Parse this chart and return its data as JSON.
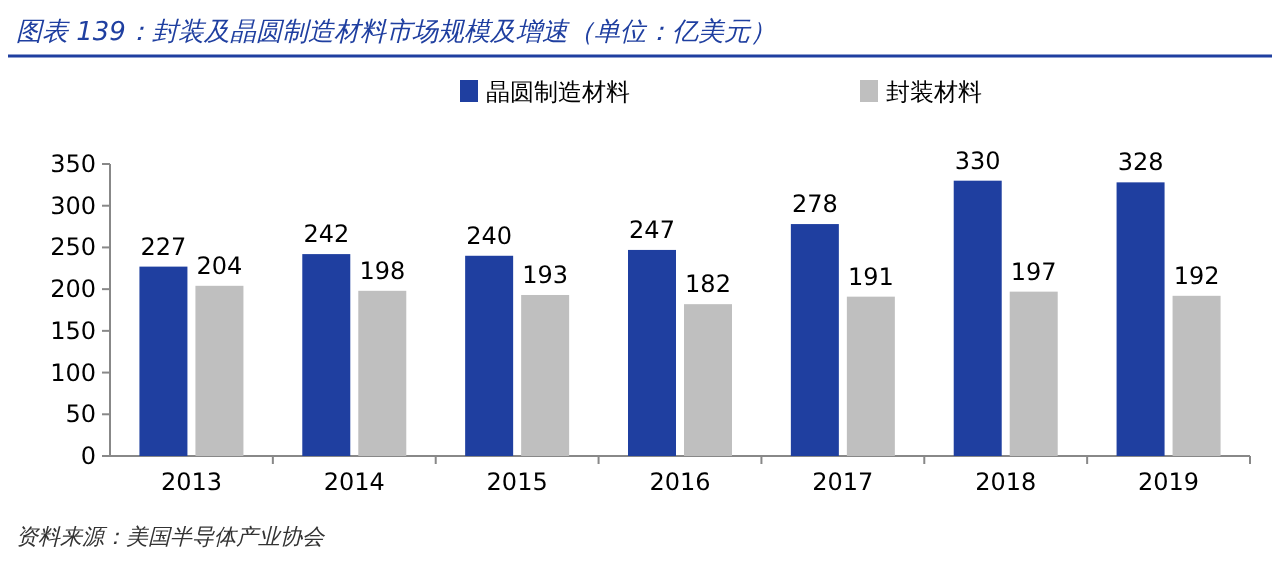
{
  "chart_data": {
    "type": "bar",
    "title": "图表 139：封装及晶圆制造材料市场规模及增速（单位：亿美元）",
    "categories": [
      "2013",
      "2014",
      "2015",
      "2016",
      "2017",
      "2018",
      "2019"
    ],
    "series": [
      {
        "name": "晶圆制造材料",
        "color": "#1f3fa0",
        "values": [
          227,
          242,
          240,
          247,
          278,
          330,
          328
        ]
      },
      {
        "name": "封装材料",
        "color": "#bfbfbf",
        "values": [
          204,
          198,
          193,
          182,
          191,
          197,
          192
        ]
      }
    ],
    "ylim": [
      0,
      350
    ],
    "yticks": [
      0,
      50,
      100,
      150,
      200,
      250,
      300,
      350
    ],
    "data_labels": true,
    "legend": "top",
    "grid": false,
    "annotations": [
      "资料来源：美国半导体产业协会"
    ]
  }
}
